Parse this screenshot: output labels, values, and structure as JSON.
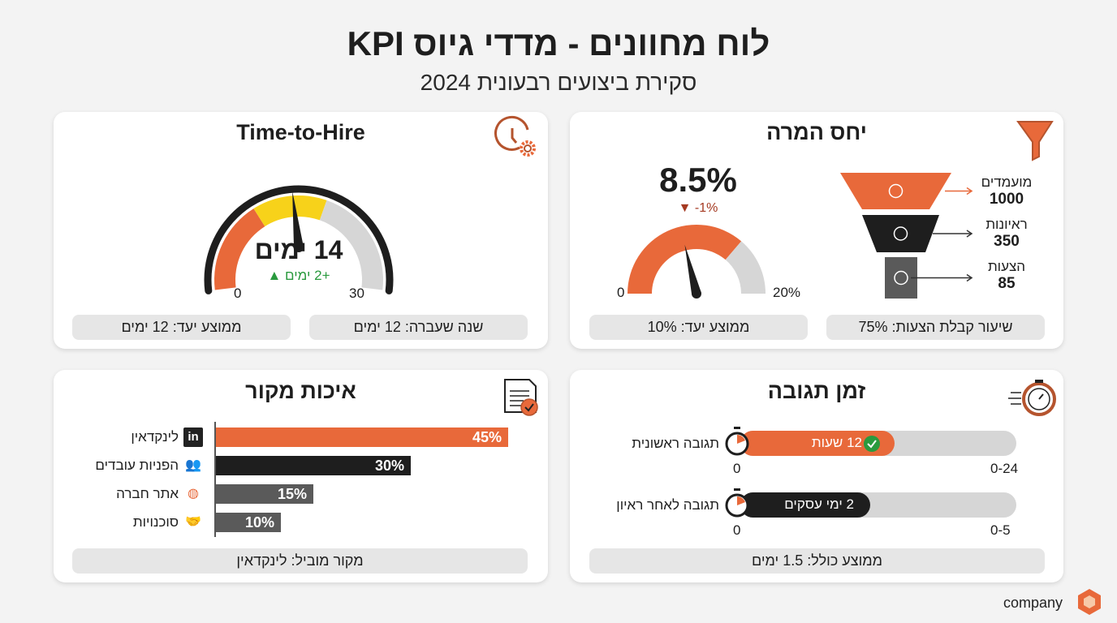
{
  "header": {
    "title": "לוח מחוונים - מדדי גיוס KPI",
    "subtitle": "סקירת ביצועים רבעונית 2024"
  },
  "colors": {
    "orange": "#e8693a",
    "yellow": "#f7d21a",
    "black": "#1e1e1e",
    "grey": "#d6d6d6",
    "darkgrey": "#5a5a5a",
    "green": "#2a9a3e",
    "downred": "#a53a22"
  },
  "time_to_hire": {
    "title": "Time-to-Hire",
    "icon": "clock-gear-icon",
    "value": 14,
    "value_label": "14 ימים",
    "change": "+2 ימים",
    "change_dir": "up",
    "min_label": "0",
    "max_label": "30",
    "min": 0,
    "max": 30,
    "bands": [
      {
        "to": 10,
        "color": "orange"
      },
      {
        "to": 18,
        "color": "yellow"
      },
      {
        "to": 30,
        "color": "grey"
      }
    ],
    "last_year": "שנה שעברה: 12 ימים",
    "target": "ממוצע יעד: 12 ימים"
  },
  "conversion": {
    "title": "יחס המרה",
    "icon": "funnel-icon",
    "value": 8.5,
    "value_label": "8.5%",
    "change": "-1%",
    "change_dir": "down",
    "min_label": "0",
    "max_label": "20%",
    "min": 0,
    "max": 20,
    "filled_to": 14.5,
    "target": "ממוצע יעד: 10%",
    "offer_accept": "שיעור קבלת הצעות: 75%",
    "funnel": [
      {
        "label": "מועמדים",
        "value": "1000",
        "icon": "candidates-icon"
      },
      {
        "label": "ראיונות",
        "value": "350",
        "icon": "interview-icon"
      },
      {
        "label": "הצעות",
        "value": "85",
        "icon": "offer-hand-dollar-icon"
      }
    ]
  },
  "source_quality": {
    "title": "איכות מקור",
    "icon": "document-check-icon",
    "leading": "מקור מוביל: לינקדאין"
  },
  "response_time": {
    "title": "זמן תגובה",
    "icon": "stopwatch-fast-icon",
    "overall": "ממוצע כולל: 1.5 ימים",
    "rows": [
      {
        "label": "תגובה ראשונית",
        "value": 12,
        "max": 24,
        "value_label": "12 שעות",
        "min_label": "0",
        "range_label": "0-24",
        "color": "orange",
        "check": true
      },
      {
        "label": "תגובה לאחר ראיון",
        "value": 2,
        "max": 5,
        "value_label": "2 ימי עסקים",
        "min_label": "0",
        "range_label": "0-5",
        "color": "black",
        "check": false
      }
    ]
  },
  "brand": {
    "name": "company"
  },
  "chart_data": [
    {
      "type": "bar",
      "orientation": "horizontal",
      "title": "איכות מקור",
      "categories": [
        "לינקדאין",
        "הפניות עובדים",
        "אתר חברה",
        "סוכנויות"
      ],
      "icons": [
        "linkedin-icon",
        "people-icon",
        "globe-icon",
        "handshake-icon"
      ],
      "values": [
        45,
        30,
        15,
        10
      ],
      "value_labels": [
        "45%",
        "30%",
        "15%",
        "10%"
      ],
      "colors": [
        "orange",
        "black",
        "darkgrey",
        "darkgrey"
      ],
      "xlim": [
        0,
        50
      ]
    },
    {
      "type": "gauge",
      "title": "Time-to-Hire",
      "value": 14,
      "range": [
        0,
        30
      ],
      "unit": "ימים"
    },
    {
      "type": "gauge",
      "title": "יחס המרה",
      "value": 8.5,
      "range": [
        0,
        20
      ],
      "unit": "%"
    },
    {
      "type": "funnel",
      "title": "יחס המרה",
      "categories": [
        "מועמדים",
        "ראיונות",
        "הצעות"
      ],
      "values": [
        1000,
        350,
        85
      ]
    }
  ]
}
